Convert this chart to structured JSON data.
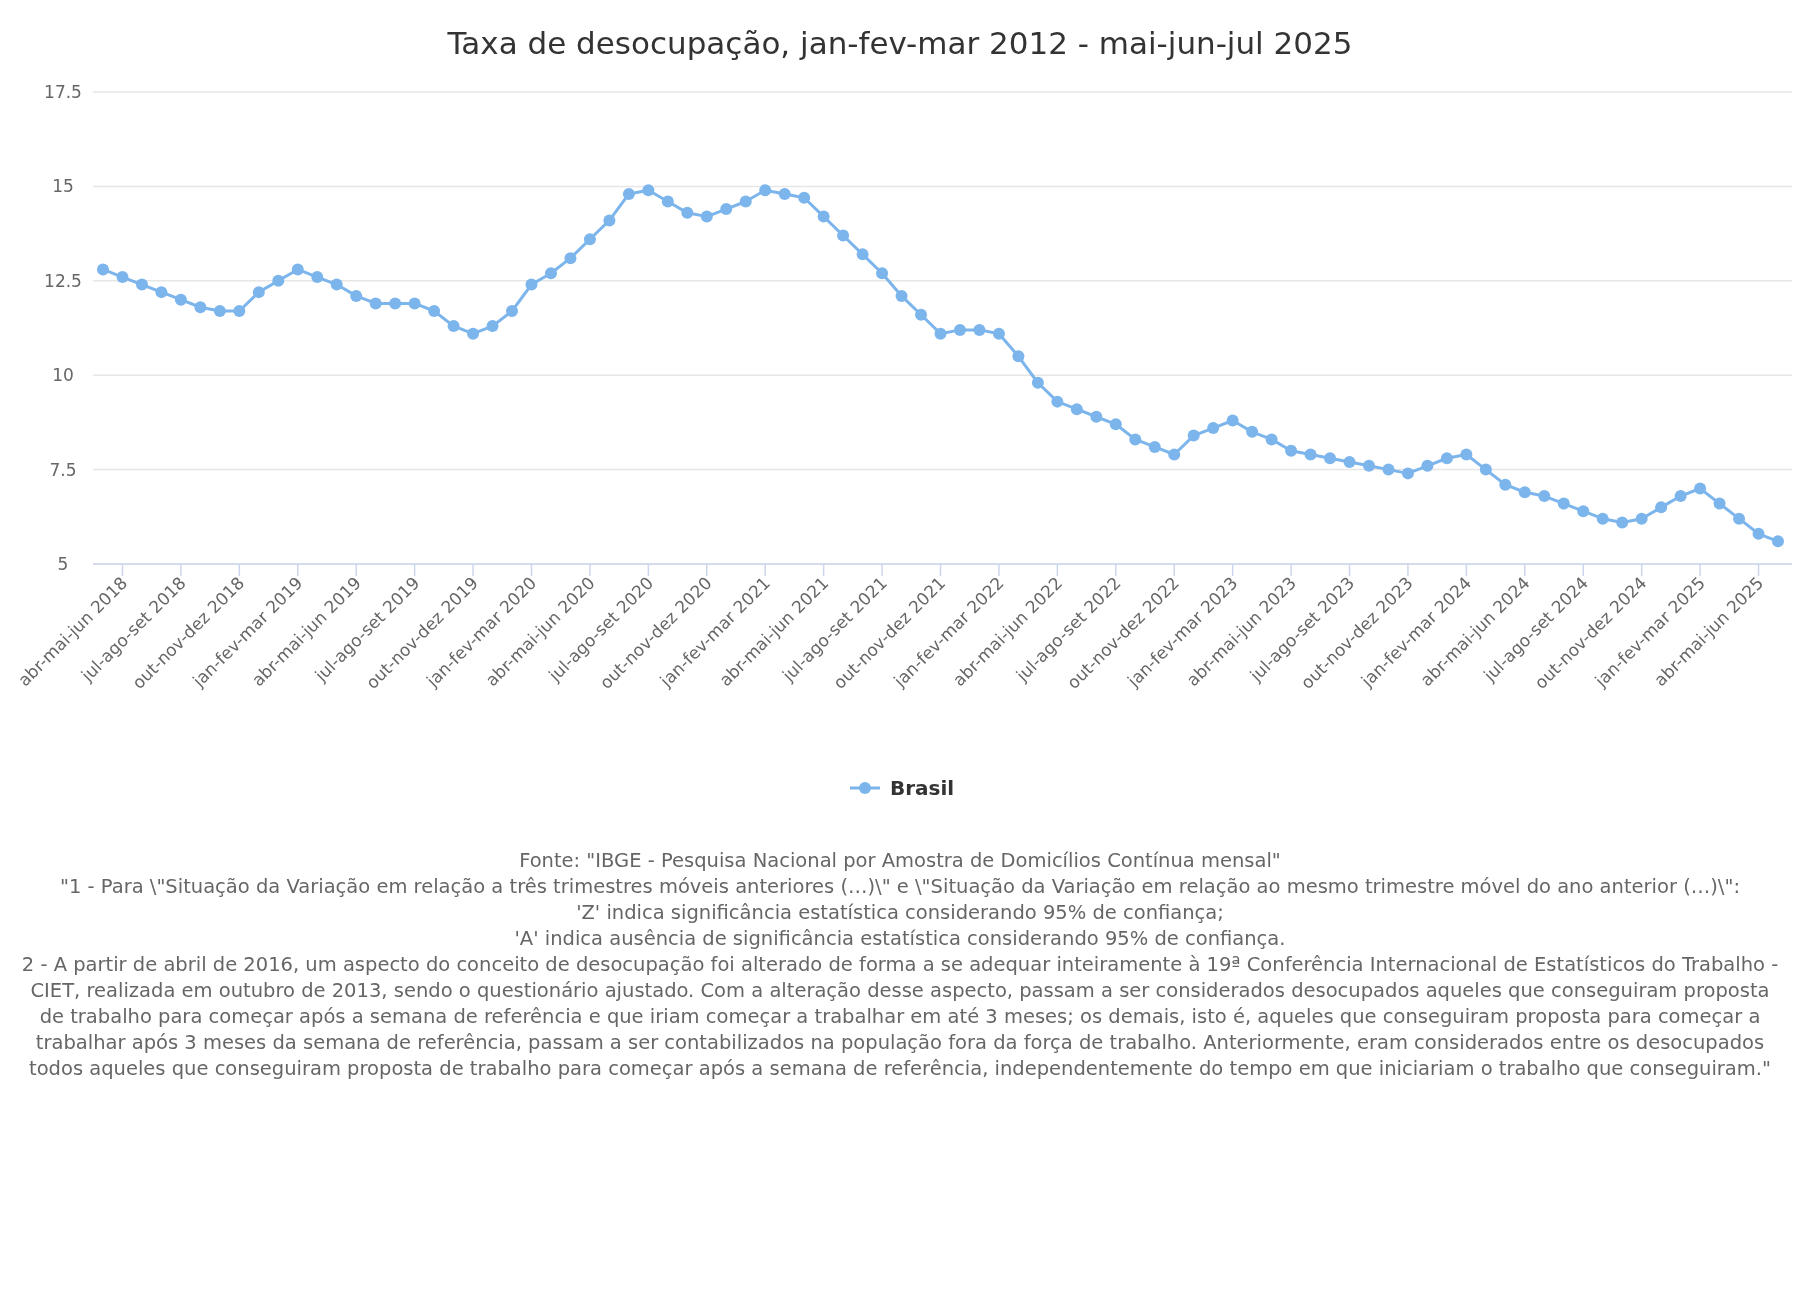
{
  "chart_data": {
    "type": "line",
    "title": "Taxa de desocupação, jan-fev-mar 2012 - mai-jun-jul 2025",
    "categories": [
      null,
      "abr-mai-jun 2018",
      null,
      null,
      "jul-ago-set 2018",
      null,
      null,
      "out-nov-dez 2018",
      null,
      null,
      "jan-fev-mar 2019",
      null,
      null,
      "abr-mai-jun 2019",
      null,
      null,
      "jul-ago-set 2019",
      null,
      null,
      "out-nov-dez 2019",
      null,
      null,
      "jan-fev-mar 2020",
      null,
      null,
      "abr-mai-jun 2020",
      null,
      null,
      "jul-ago-set 2020",
      null,
      null,
      "out-nov-dez 2020",
      null,
      null,
      "jan-fev-mar 2021",
      null,
      null,
      "abr-mai-jun 2021",
      null,
      null,
      "jul-ago-set 2021",
      null,
      null,
      "out-nov-dez 2021",
      null,
      null,
      "jan-fev-mar 2022",
      null,
      null,
      "abr-mai-jun 2022",
      null,
      null,
      "jul-ago-set 2022",
      null,
      null,
      "out-nov-dez 2022",
      null,
      null,
      "jan-fev-mar 2023",
      null,
      null,
      "abr-mai-jun 2023",
      null,
      null,
      "jul-ago-set 2023",
      null,
      null,
      "out-nov-dez 2023",
      null,
      null,
      "jan-fev-mar 2024",
      null,
      null,
      "abr-mai-jun 2024",
      null,
      null,
      "jul-ago-set 2024",
      null,
      null,
      "out-nov-dez 2024",
      null,
      null,
      "jan-fev-mar 2025",
      null,
      null,
      "abr-mai-jun 2025",
      null
    ],
    "series": [
      {
        "name": "Brasil",
        "color": "#7cb5ec",
        "values": [
          12.8,
          12.6,
          12.4,
          12.2,
          12.0,
          11.8,
          11.7,
          11.7,
          12.2,
          12.5,
          12.8,
          12.6,
          12.4,
          12.1,
          11.9,
          11.9,
          11.9,
          11.7,
          11.3,
          11.1,
          11.3,
          11.7,
          12.4,
          12.7,
          13.1,
          13.6,
          14.1,
          14.8,
          14.9,
          14.6,
          14.3,
          14.2,
          14.4,
          14.6,
          14.9,
          14.8,
          14.7,
          14.2,
          13.7,
          13.2,
          12.7,
          12.1,
          11.6,
          11.1,
          11.2,
          11.2,
          11.1,
          10.5,
          9.8,
          9.3,
          9.1,
          8.9,
          8.7,
          8.3,
          8.1,
          7.9,
          8.4,
          8.6,
          8.8,
          8.5,
          8.3,
          8.0,
          7.9,
          7.8,
          7.7,
          7.6,
          7.5,
          7.4,
          7.6,
          7.8,
          7.9,
          7.5,
          7.1,
          6.9,
          6.8,
          6.6,
          6.4,
          6.2,
          6.1,
          6.2,
          6.5,
          6.8,
          7.0,
          6.6,
          6.2,
          5.8,
          5.6
        ]
      }
    ],
    "ylim": [
      5,
      17.5
    ],
    "yticks": [
      5,
      7.5,
      10,
      12.5,
      15,
      17.5
    ],
    "grid": "y",
    "legend": "bottom",
    "marker": "circle",
    "line_style": "solid",
    "annotations": [
      "Fonte: \"IBGE - Pesquisa Nacional por Amostra de Domicílios Contínua mensal\"",
      "\"1 - Para \\\"Situação da Variação em relação a três trimestres móveis anteriores (…)\\\" e \\\"Situação da Variação em relação ao mesmo trimestre móvel do ano anterior (…)\\\":",
      "'Z' indica significância estatística considerando 95% de confiança;",
      "'A' indica ausência de significância estatística considerando 95% de confiança.",
      "2 - A partir de abril de 2016, um aspecto do conceito de desocupação foi alterado de forma a se adequar inteiramente à 19ª Conferência Internacional de Estatísticos do Trabalho - CIET, realizada em outubro de 2013, sendo o questionário ajustado. Com a alteração desse aspecto, passam a ser considerados desocupados aqueles que conseguiram proposta de trabalho para começar após a semana de referência e que iriam começar a trabalhar em até 3 meses; os demais, isto é, aqueles que conseguiram proposta para começar a trabalhar após 3 meses da semana de referência, passam a ser contabilizados na população fora da força de trabalho. Anteriormente, eram considerados entre os desocupados todos aqueles que conseguiram proposta de trabalho para começar após a semana de referência, independentemente do tempo em que iniciariam o trabalho que conseguiram.\""
    ]
  }
}
